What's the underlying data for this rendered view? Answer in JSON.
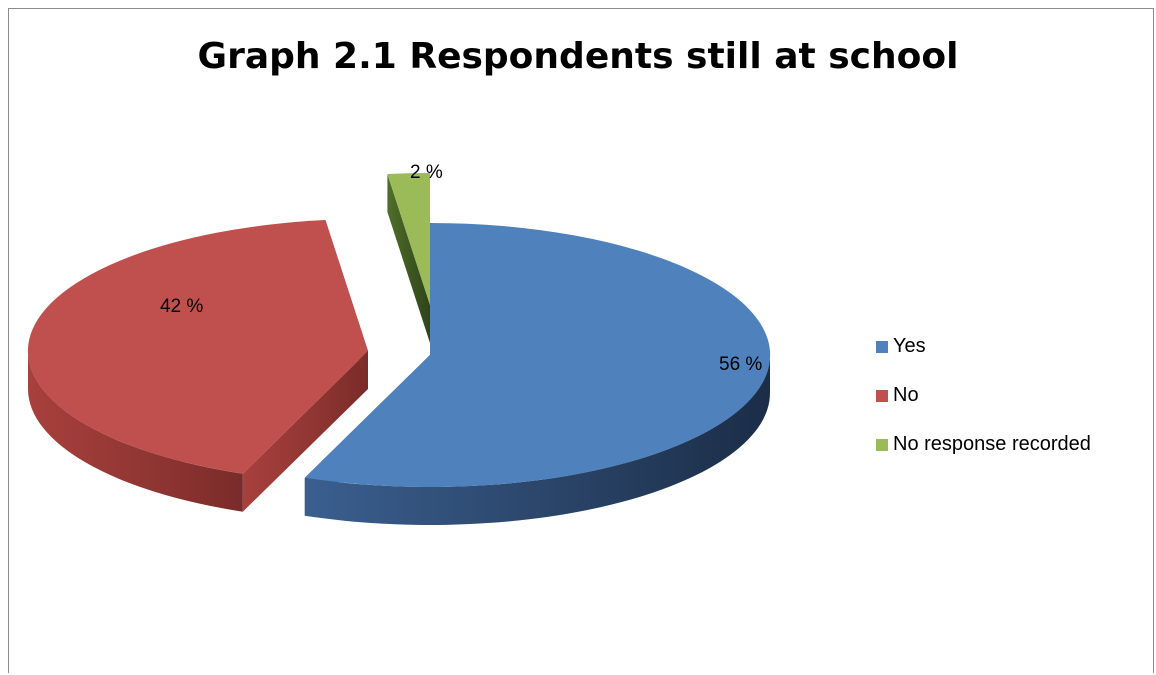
{
  "chart_data": {
    "type": "pie",
    "title": "Graph 2.1 Respondents still at school",
    "categories": [
      "Yes",
      "No",
      "No response recorded"
    ],
    "values": [
      56,
      42,
      2
    ],
    "data_labels": [
      "56 %",
      "42 %",
      "2 %"
    ],
    "colors": [
      "#4f81bd",
      "#c0504d",
      "#9bbb59"
    ],
    "exploded": true,
    "three_d": true,
    "legend_position": "right"
  }
}
